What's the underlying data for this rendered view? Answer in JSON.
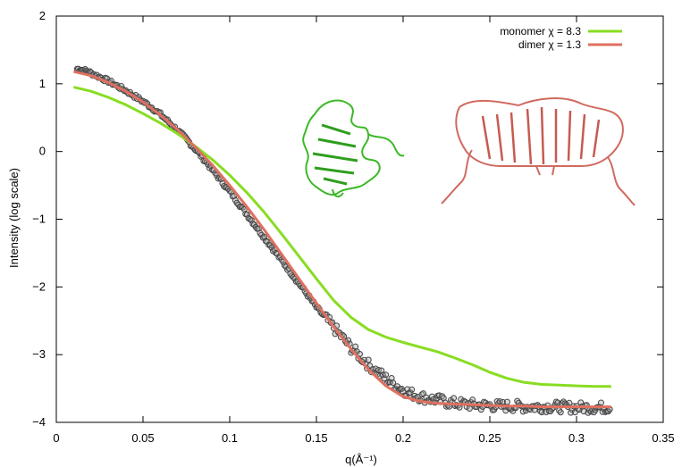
{
  "chart_data": {
    "type": "scatter",
    "xlabel": "q(Å⁻¹)",
    "ylabel": "Intensity (log scale)",
    "xlim": [
      0,
      0.35
    ],
    "ylim": [
      -4,
      2
    ],
    "x_ticks": [
      "0",
      "0.05",
      "0.1",
      "0.15",
      "0.2",
      "0.25",
      "0.3",
      "0.35"
    ],
    "y_ticks": [
      "2",
      "1",
      "0",
      "−1",
      "−2",
      "−3",
      "−4"
    ],
    "grid": false,
    "legend_position": "top-right",
    "experimental": {
      "marker": "open-circle",
      "color": "#444444",
      "x": [
        0.012,
        0.016,
        0.02,
        0.025,
        0.03,
        0.035,
        0.04,
        0.045,
        0.05,
        0.055,
        0.06,
        0.065,
        0.07,
        0.075,
        0.08,
        0.085,
        0.09,
        0.095,
        0.1,
        0.105,
        0.11,
        0.115,
        0.12,
        0.125,
        0.13,
        0.135,
        0.14,
        0.145,
        0.15,
        0.155,
        0.16,
        0.165,
        0.17,
        0.175,
        0.18,
        0.185,
        0.19,
        0.195,
        0.2,
        0.205,
        0.21,
        0.215,
        0.22,
        0.225,
        0.23,
        0.235,
        0.24,
        0.245,
        0.25,
        0.255,
        0.26,
        0.265,
        0.27,
        0.275,
        0.28,
        0.285,
        0.29,
        0.295,
        0.3,
        0.305,
        0.31,
        0.315,
        0.32
      ],
      "y": [
        1.22,
        1.2,
        1.16,
        1.1,
        1.04,
        0.97,
        0.9,
        0.82,
        0.74,
        0.65,
        0.55,
        0.43,
        0.31,
        0.18,
        0.04,
        -0.11,
        -0.27,
        -0.43,
        -0.59,
        -0.76,
        -0.93,
        -1.1,
        -1.27,
        -1.44,
        -1.61,
        -1.78,
        -1.95,
        -2.12,
        -2.3,
        -2.45,
        -2.6,
        -2.75,
        -2.9,
        -3.02,
        -3.15,
        -3.25,
        -3.35,
        -3.44,
        -3.52,
        -3.58,
        -3.62,
        -3.65,
        -3.67,
        -3.7,
        -3.72,
        -3.73,
        -3.74,
        -3.75,
        -3.75,
        -3.76,
        -3.76,
        -3.76,
        -3.77,
        -3.77,
        -3.77,
        -3.77,
        -3.77,
        -3.78,
        -3.78,
        -3.78,
        -3.78,
        -3.78,
        -3.78
      ]
    },
    "series": [
      {
        "name": "monomer χ = 8.3",
        "color": "#88dd22",
        "x": [
          0.01,
          0.02,
          0.03,
          0.04,
          0.05,
          0.06,
          0.07,
          0.08,
          0.09,
          0.1,
          0.11,
          0.12,
          0.13,
          0.14,
          0.15,
          0.16,
          0.17,
          0.18,
          0.19,
          0.2,
          0.21,
          0.22,
          0.23,
          0.24,
          0.25,
          0.26,
          0.27,
          0.28,
          0.29,
          0.3,
          0.31,
          0.32
        ],
        "y": [
          0.95,
          0.89,
          0.8,
          0.69,
          0.56,
          0.42,
          0.26,
          0.08,
          -0.12,
          -0.35,
          -0.61,
          -0.9,
          -1.22,
          -1.55,
          -1.88,
          -2.2,
          -2.45,
          -2.63,
          -2.74,
          -2.82,
          -2.89,
          -2.96,
          -3.05,
          -3.15,
          -3.26,
          -3.35,
          -3.41,
          -3.44,
          -3.45,
          -3.46,
          -3.47,
          -3.47
        ]
      },
      {
        "name": "dimer χ = 1.3",
        "color": "#e07060",
        "x": [
          0.01,
          0.02,
          0.03,
          0.04,
          0.05,
          0.06,
          0.07,
          0.08,
          0.09,
          0.1,
          0.11,
          0.12,
          0.13,
          0.14,
          0.15,
          0.16,
          0.17,
          0.18,
          0.19,
          0.2,
          0.21,
          0.22,
          0.23,
          0.24,
          0.25,
          0.26,
          0.27,
          0.28,
          0.29,
          0.3,
          0.31,
          0.32
        ],
        "y": [
          1.18,
          1.12,
          1.02,
          0.89,
          0.73,
          0.54,
          0.32,
          0.07,
          -0.2,
          -0.5,
          -0.82,
          -1.16,
          -1.52,
          -1.88,
          -2.24,
          -2.59,
          -2.92,
          -3.22,
          -3.46,
          -3.62,
          -3.69,
          -3.72,
          -3.73,
          -3.74,
          -3.75,
          -3.76,
          -3.76,
          -3.77,
          -3.77,
          -3.77,
          -3.77,
          -3.77
        ]
      }
    ]
  }
}
